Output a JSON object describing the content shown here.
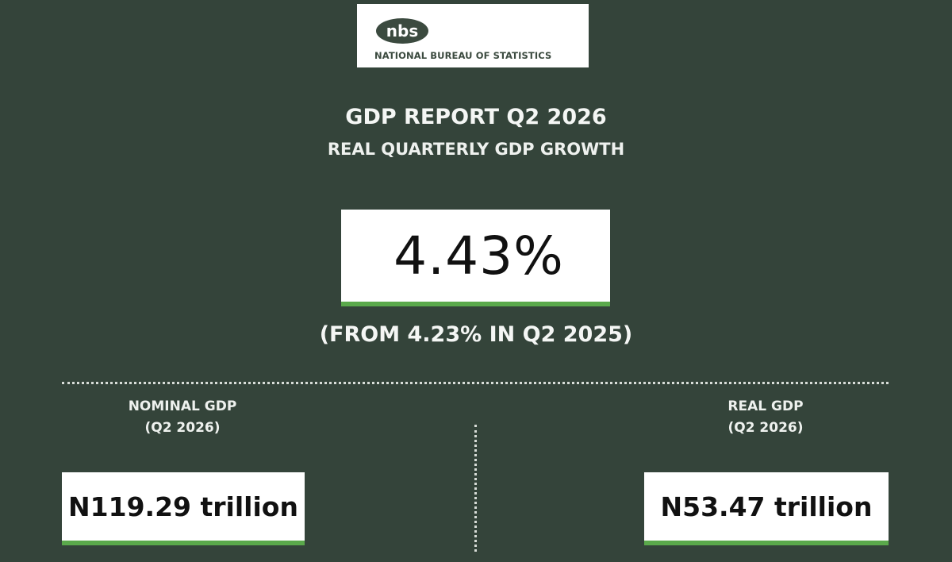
{
  "logo": {
    "mark": "nbs",
    "caption": "NATIONAL BUREAU OF STATISTICS",
    "icon": "nbs-logo"
  },
  "report": {
    "title": "GDP REPORT Q2 2026",
    "subtitle": "REAL QUARTERLY GDP GROWTH",
    "growth_value": "4.43%",
    "comparison": "(FROM 4.23% IN Q2 2025)"
  },
  "nominal_gdp": {
    "label": "NOMINAL GDP",
    "period": "(Q2 2026)",
    "value": "N119.29 trillion"
  },
  "real_gdp": {
    "label": "REAL GDP",
    "period": "(Q2 2026)",
    "value": "N53.47 trillion"
  },
  "colors": {
    "background": "#34443a",
    "accent_green": "#5aa94b",
    "card": "#ffffff",
    "logo_mark": "#3b4a3f"
  }
}
